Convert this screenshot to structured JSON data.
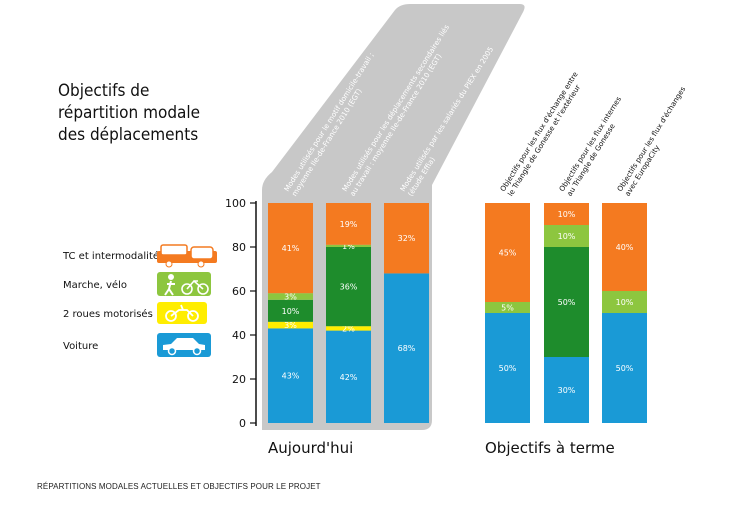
{
  "caption": "RÉPARTITIONS MODALES ACTUELLES ET OBJECTIFS POUR LE PROJET",
  "colors": {
    "tc": "#f47a20",
    "marche": "#8dc63f",
    "marche_dark": "#1e8c2c",
    "deux_roues": "#ffed00",
    "voiture": "#1a9ad6",
    "panel": "#c8c8c8"
  },
  "chart_data": {
    "type": "bar",
    "stacked": true,
    "title": "Objectifs de répartition modale des déplacements",
    "title_lines": [
      "Objectifs de",
      "répartition modale",
      "des déplacements"
    ],
    "ylim": [
      0,
      100
    ],
    "yticks": [
      "0",
      "20",
      "40",
      "60",
      "80",
      "100"
    ],
    "legend": [
      {
        "key": "tc",
        "label": "TC et intermodalité",
        "icon": "bus-train-icon"
      },
      {
        "key": "marche",
        "label": "Marche, vélo",
        "icon": "walk-bike-icon"
      },
      {
        "key": "deux_roues",
        "label": "2 roues motorisés",
        "icon": "motorbike-icon"
      },
      {
        "key": "voiture",
        "label": "Voiture",
        "icon": "car-icon"
      }
    ],
    "groups": [
      {
        "label": "Aujourd'hui",
        "bars": [
          0,
          1,
          2
        ]
      },
      {
        "label": "Objectifs à terme",
        "bars": [
          3,
          4,
          5
        ]
      }
    ],
    "bars": [
      {
        "category": "Modes utilisés pour le motif domicile-travail ; moyenne Ile-de-France 2010 (EGT)",
        "category_lines": [
          "Modes utilisés pour le motif domicile-travail ;",
          "moyenne Ile-de-France 2010 (EGT)"
        ],
        "segments": [
          {
            "mode": "voiture",
            "value": 43,
            "label": "43%"
          },
          {
            "mode": "deux_roues",
            "value": 3,
            "label": "3%"
          },
          {
            "mode": "marche_dark",
            "value": 10,
            "label": "10%"
          },
          {
            "mode": "marche",
            "value": 3,
            "label": "3%"
          },
          {
            "mode": "tc",
            "value": 41,
            "label": "41%"
          }
        ]
      },
      {
        "category": "Modes utilisés pour les déplacements secondaires liés au travail : moyenne Ile-de-France 2010 (EGT)",
        "category_lines": [
          "Modes utilisés pour les déplacements secondaires liés",
          "au travail : moyenne Ile-de-France 2010 (EGT)"
        ],
        "segments": [
          {
            "mode": "voiture",
            "value": 42,
            "label": "42%"
          },
          {
            "mode": "deux_roues",
            "value": 2,
            "label": "2%"
          },
          {
            "mode": "marche_dark",
            "value": 36,
            "label": "36%"
          },
          {
            "mode": "marche",
            "value": 1,
            "label": "1%"
          },
          {
            "mode": "tc",
            "value": 19,
            "label": "19%"
          }
        ]
      },
      {
        "category": "Modes utilisés par les salariés du PIEX en 2005 (étude Effia)",
        "category_lines": [
          "Modes utilisés par les salariés du PIEX en 2005",
          "(étude Effia)"
        ],
        "segments": [
          {
            "mode": "voiture",
            "value": 68,
            "label": "68%"
          },
          {
            "mode": "tc",
            "value": 32,
            "label": "32%"
          }
        ]
      },
      {
        "category": "Objectifs pour les flux d'échange entre le Triangle de Gonesse et l'extérieur",
        "category_lines": [
          "Objectifs pour les flux d'échange entre",
          "le Triangle de Gonesse et l'extérieur"
        ],
        "segments": [
          {
            "mode": "voiture",
            "value": 50,
            "label": "50%"
          },
          {
            "mode": "marche",
            "value": 5,
            "label": "5%"
          },
          {
            "mode": "tc",
            "value": 45,
            "label": "45%"
          }
        ]
      },
      {
        "category": "Objectifs pour les flux internes au Triangle de Gonesse",
        "category_lines": [
          "Objectifs pour les flux internes",
          "au Triangle de Gonesse"
        ],
        "segments": [
          {
            "mode": "voiture",
            "value": 30,
            "label": "30%"
          },
          {
            "mode": "marche_dark",
            "value": 50,
            "label": "50%"
          },
          {
            "mode": "marche",
            "value": 10,
            "label": "10%"
          },
          {
            "mode": "tc",
            "value": 10,
            "label": "10%"
          }
        ]
      },
      {
        "category": "Objectifs pour les flux d'échanges avec EuropaCity",
        "category_lines": [
          "Objectifs pour les flux d'échanges",
          "avec EuropaCity"
        ],
        "segments": [
          {
            "mode": "voiture",
            "value": 50,
            "label": "50%"
          },
          {
            "mode": "marche",
            "value": 10,
            "label": "10%"
          },
          {
            "mode": "tc",
            "value": 40,
            "label": "40%"
          }
        ]
      }
    ]
  }
}
